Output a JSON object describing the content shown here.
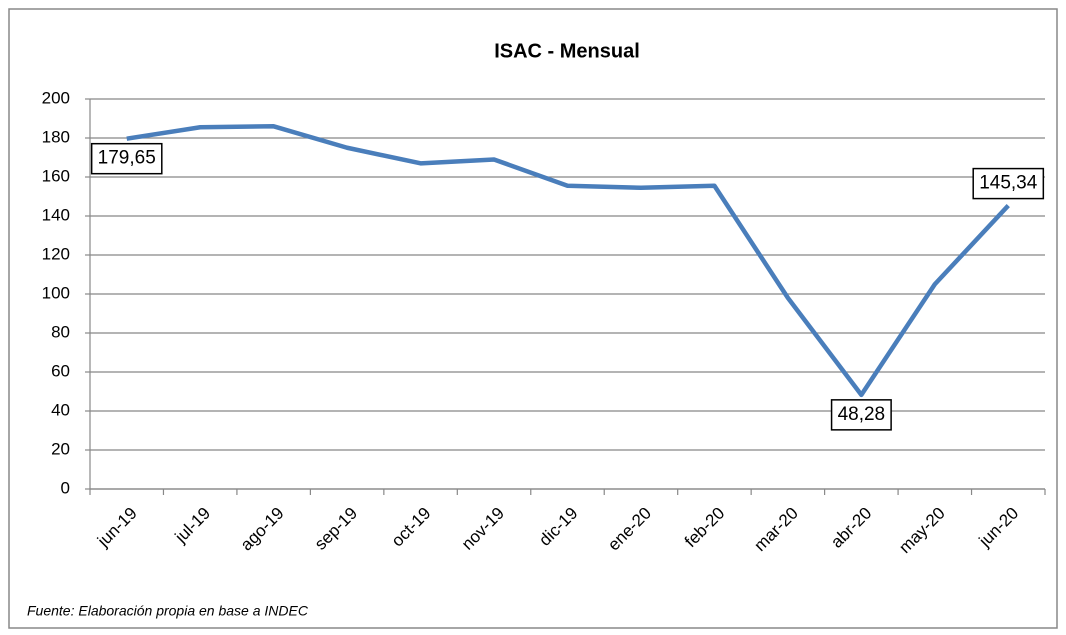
{
  "chart_data": {
    "type": "line",
    "title": "ISAC - Mensual",
    "categories": [
      "jun-19",
      "jul-19",
      "ago-19",
      "sep-19",
      "oct-19",
      "nov-19",
      "dic-19",
      "ene-20",
      "feb-20",
      "mar-20",
      "abr-20",
      "may-20",
      "jun-20"
    ],
    "series": [
      {
        "name": "ISAC",
        "color": "#4a7ebb",
        "values": [
          179.65,
          185.5,
          186,
          175,
          167,
          169,
          155.5,
          154.5,
          155.5,
          98,
          48.28,
          105,
          145.34
        ],
        "value_labels": [
          "179,65",
          null,
          null,
          null,
          null,
          null,
          null,
          null,
          null,
          null,
          "48,28",
          null,
          "145,34"
        ]
      }
    ],
    "ylim": [
      0,
      200
    ],
    "yticks": [
      0,
      20,
      40,
      60,
      80,
      100,
      120,
      140,
      160,
      180,
      200
    ],
    "grid": true,
    "source": "Fuente: Elaboración propia en base a INDEC"
  }
}
